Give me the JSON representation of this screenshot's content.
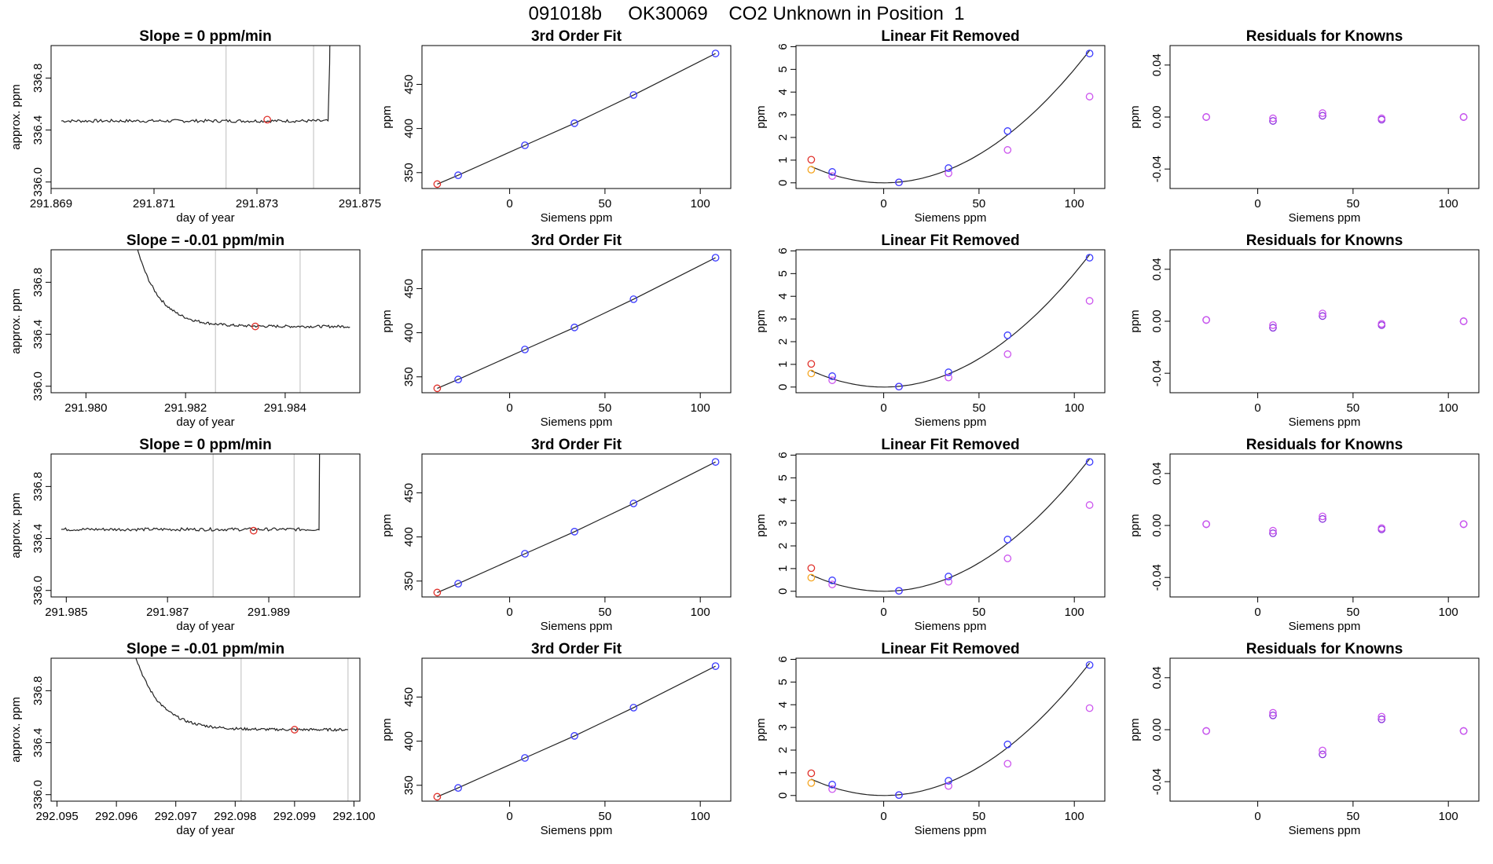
{
  "main_title": "091018b     OK30069    CO2 Unknown in Position  1",
  "colors": {
    "curve": "#222222",
    "blue": "#3a3aff",
    "red": "#e0302a",
    "orange": "#f5a623",
    "magenta": "#cc55ee",
    "purple": "#8833dd",
    "vline": "#bdbdbd"
  },
  "chart_data": [
    {
      "row": 0,
      "panel": "timeseries",
      "type": "line",
      "title": "Slope =  0  ppm/min",
      "xlabel": "day of year",
      "ylabel": "approx. ppm",
      "xlim": [
        291.869,
        291.875
      ],
      "ylim": [
        335.95,
        337.05
      ],
      "xticks": [
        291.869,
        291.871,
        291.873,
        291.875
      ],
      "xtick_labels": [
        "291.869",
        "291.871",
        "291.873",
        "291.875"
      ],
      "yticks": [
        336.0,
        336.4,
        336.8
      ],
      "ytick_labels": [
        "336.0",
        "336.4",
        "336.8"
      ],
      "x_start": 291.8692,
      "x_end": 291.8745,
      "level": 336.47,
      "start_value": 336.47,
      "end_value": 337.1,
      "ramp_start": 291.8744,
      "noise": 0.012,
      "settle": 0.0003,
      "vlines": [
        291.8724,
        291.8741
      ],
      "marker": {
        "x": 291.8732,
        "y": 336.48
      }
    },
    {
      "row": 0,
      "panel": "fit",
      "type": "scatter",
      "title": "3rd Order Fit",
      "xlabel": "Siemens ppm",
      "ylabel": "ppm",
      "xlim": [
        -46,
        116
      ],
      "ylim": [
        332,
        494
      ],
      "xticks": [
        0,
        50,
        100
      ],
      "xtick_labels": [
        "0",
        "50",
        "100"
      ],
      "yticks": [
        350,
        400,
        450
      ],
      "ytick_labels": [
        "350",
        "400",
        "450"
      ],
      "knowns": [
        [
          -27,
          347
        ],
        [
          8,
          381
        ],
        [
          34,
          406
        ],
        [
          65,
          438
        ],
        [
          108,
          485
        ]
      ],
      "unknown": [
        -38,
        337
      ]
    },
    {
      "row": 0,
      "panel": "linear_removed",
      "type": "scatter",
      "title": "Linear Fit Removed",
      "xlabel": "Siemens ppm",
      "ylabel": "ppm",
      "xlim": [
        -46,
        116
      ],
      "ylim": [
        -0.25,
        6.05
      ],
      "xticks": [
        0,
        50,
        100
      ],
      "xtick_labels": [
        "0",
        "50",
        "100"
      ],
      "yticks": [
        0,
        1,
        2,
        3,
        4,
        5,
        6
      ],
      "ytick_labels": [
        "0",
        "1",
        "2",
        "3",
        "4",
        "5",
        "6"
      ],
      "curve_quadratic": [
        0.0005,
        0,
        0
      ],
      "knowns": [
        [
          -27,
          0.48
        ],
        [
          8,
          0.02
        ],
        [
          34,
          0.65
        ],
        [
          65,
          2.28
        ],
        [
          108,
          5.7
        ]
      ],
      "knowns_alt": [
        [
          -27,
          0.3
        ],
        [
          8,
          0.02
        ],
        [
          34,
          0.42
        ],
        [
          65,
          1.45
        ],
        [
          108,
          3.8
        ]
      ],
      "unknown": [
        -38,
        1.02
      ],
      "unknown_alt": [
        -38,
        0.58
      ]
    },
    {
      "row": 0,
      "panel": "residuals",
      "type": "scatter",
      "title": "Residuals for Knowns",
      "xlabel": "Siemens ppm",
      "ylabel": "ppm",
      "xlim": [
        -46,
        116
      ],
      "ylim": [
        -0.055,
        0.055
      ],
      "xticks": [
        0,
        50,
        100
      ],
      "xtick_labels": [
        "0",
        "50",
        "100"
      ],
      "yticks": [
        -0.04,
        0.0,
        0.04
      ],
      "ytick_labels": [
        "-0.04",
        "0.00",
        "0.04"
      ],
      "points_a": [
        [
          -27,
          0.0
        ],
        [
          8,
          -0.001
        ],
        [
          34,
          0.003
        ],
        [
          65,
          -0.001
        ],
        [
          108,
          0.0
        ]
      ],
      "points_b": [
        [
          -27,
          0.0
        ],
        [
          8,
          -0.003
        ],
        [
          34,
          0.001
        ],
        [
          65,
          -0.002
        ],
        [
          108,
          0.0
        ]
      ]
    },
    {
      "row": 1,
      "panel": "timeseries",
      "type": "line",
      "title": "Slope =  -0.01  ppm/min",
      "xlabel": "day of year",
      "ylabel": "approx. ppm",
      "xlim": [
        291.9793,
        291.9855
      ],
      "ylim": [
        335.95,
        337.05
      ],
      "xticks": [
        291.98,
        291.982,
        291.984
      ],
      "xtick_labels": [
        "291.980",
        "291.982",
        "291.984"
      ],
      "yticks": [
        336.0,
        336.4,
        336.8
      ],
      "ytick_labels": [
        "336.0",
        "336.4",
        "336.8"
      ],
      "x_start": 291.981,
      "x_end": 291.9853,
      "level": 336.46,
      "start_value": 337.1,
      "end_value": 336.46,
      "ramp_start": 999,
      "noise": 0.01,
      "settle": 0.00045,
      "vlines": [
        291.9826,
        291.9843
      ],
      "marker": {
        "x": 291.9834,
        "y": 336.46
      }
    },
    {
      "row": 1,
      "panel": "fit",
      "type": "scatter",
      "title": "3rd Order Fit",
      "xlabel": "Siemens ppm",
      "ylabel": "ppm",
      "xlim": [
        -46,
        116
      ],
      "ylim": [
        332,
        494
      ],
      "xticks": [
        0,
        50,
        100
      ],
      "xtick_labels": [
        "0",
        "50",
        "100"
      ],
      "yticks": [
        350,
        400,
        450
      ],
      "ytick_labels": [
        "350",
        "400",
        "450"
      ],
      "knowns": [
        [
          -27,
          347
        ],
        [
          8,
          381
        ],
        [
          34,
          406
        ],
        [
          65,
          438
        ],
        [
          108,
          485
        ]
      ],
      "unknown": [
        -38,
        337
      ]
    },
    {
      "row": 1,
      "panel": "linear_removed",
      "type": "scatter",
      "title": "Linear Fit Removed",
      "xlabel": "Siemens ppm",
      "ylabel": "ppm",
      "xlim": [
        -46,
        116
      ],
      "ylim": [
        -0.25,
        6.05
      ],
      "xticks": [
        0,
        50,
        100
      ],
      "xtick_labels": [
        "0",
        "50",
        "100"
      ],
      "yticks": [
        0,
        1,
        2,
        3,
        4,
        5,
        6
      ],
      "ytick_labels": [
        "0",
        "1",
        "2",
        "3",
        "4",
        "5",
        "6"
      ],
      "curve_quadratic": [
        0.0005,
        0,
        0
      ],
      "knowns": [
        [
          -27,
          0.48
        ],
        [
          8,
          0.02
        ],
        [
          34,
          0.65
        ],
        [
          65,
          2.28
        ],
        [
          108,
          5.7
        ]
      ],
      "knowns_alt": [
        [
          -27,
          0.3
        ],
        [
          8,
          0.02
        ],
        [
          34,
          0.42
        ],
        [
          65,
          1.45
        ],
        [
          108,
          3.8
        ]
      ],
      "unknown": [
        -38,
        1.02
      ],
      "unknown_alt": [
        -38,
        0.6
      ]
    },
    {
      "row": 1,
      "panel": "residuals",
      "type": "scatter",
      "title": "Residuals for Knowns",
      "xlabel": "Siemens ppm",
      "ylabel": "ppm",
      "xlim": [
        -46,
        116
      ],
      "ylim": [
        -0.055,
        0.055
      ],
      "xticks": [
        0,
        50,
        100
      ],
      "xtick_labels": [
        "0",
        "50",
        "100"
      ],
      "yticks": [
        -0.04,
        0.0,
        0.04
      ],
      "ytick_labels": [
        "-0.04",
        "0.00",
        "0.04"
      ],
      "points_a": [
        [
          -27,
          0.001
        ],
        [
          8,
          -0.003
        ],
        [
          34,
          0.006
        ],
        [
          65,
          -0.002
        ],
        [
          108,
          0.0
        ]
      ],
      "points_b": [
        [
          -27,
          0.001
        ],
        [
          8,
          -0.005
        ],
        [
          34,
          0.004
        ],
        [
          65,
          -0.003
        ],
        [
          108,
          0.0
        ]
      ]
    },
    {
      "row": 2,
      "panel": "timeseries",
      "type": "line",
      "title": "Slope =  0  ppm/min",
      "xlabel": "day of year",
      "ylabel": "approx. ppm",
      "xlim": [
        291.9847,
        291.9908
      ],
      "ylim": [
        335.95,
        337.05
      ],
      "xticks": [
        291.985,
        291.987,
        291.989
      ],
      "xtick_labels": [
        "291.985",
        "291.987",
        "291.989"
      ],
      "yticks": [
        336.0,
        336.4,
        336.8
      ],
      "ytick_labels": [
        "336.0",
        "336.4",
        "336.8"
      ],
      "x_start": 291.9849,
      "x_end": 291.99005,
      "level": 336.47,
      "start_value": 336.47,
      "end_value": 337.1,
      "ramp_start": 291.99,
      "noise": 0.012,
      "settle": 0.0003,
      "vlines": [
        291.9879,
        291.9895
      ],
      "marker": {
        "x": 291.9887,
        "y": 336.46
      }
    },
    {
      "row": 2,
      "panel": "fit",
      "type": "scatter",
      "title": "3rd Order Fit",
      "xlabel": "Siemens ppm",
      "ylabel": "ppm",
      "xlim": [
        -46,
        116
      ],
      "ylim": [
        332,
        494
      ],
      "xticks": [
        0,
        50,
        100
      ],
      "xtick_labels": [
        "0",
        "50",
        "100"
      ],
      "yticks": [
        350,
        400,
        450
      ],
      "ytick_labels": [
        "350",
        "400",
        "450"
      ],
      "knowns": [
        [
          -27,
          347
        ],
        [
          8,
          381
        ],
        [
          34,
          406
        ],
        [
          65,
          438
        ],
        [
          108,
          485
        ]
      ],
      "unknown": [
        -38,
        337
      ]
    },
    {
      "row": 2,
      "panel": "linear_removed",
      "type": "scatter",
      "title": "Linear Fit Removed",
      "xlabel": "Siemens ppm",
      "ylabel": "ppm",
      "xlim": [
        -46,
        116
      ],
      "ylim": [
        -0.25,
        6.05
      ],
      "xticks": [
        0,
        50,
        100
      ],
      "xtick_labels": [
        "0",
        "50",
        "100"
      ],
      "yticks": [
        0,
        1,
        2,
        3,
        4,
        5,
        6
      ],
      "ytick_labels": [
        "0",
        "1",
        "2",
        "3",
        "4",
        "5",
        "6"
      ],
      "curve_quadratic": [
        0.0005,
        0,
        0
      ],
      "knowns": [
        [
          -27,
          0.48
        ],
        [
          8,
          0.02
        ],
        [
          34,
          0.65
        ],
        [
          65,
          2.28
        ],
        [
          108,
          5.7
        ]
      ],
      "knowns_alt": [
        [
          -27,
          0.3
        ],
        [
          8,
          0.02
        ],
        [
          34,
          0.42
        ],
        [
          65,
          1.45
        ],
        [
          108,
          3.8
        ]
      ],
      "unknown": [
        -38,
        1.02
      ],
      "unknown_alt": [
        -38,
        0.6
      ]
    },
    {
      "row": 2,
      "panel": "residuals",
      "type": "scatter",
      "title": "Residuals for Knowns",
      "xlabel": "Siemens ppm",
      "ylabel": "ppm",
      "xlim": [
        -46,
        116
      ],
      "ylim": [
        -0.055,
        0.055
      ],
      "xticks": [
        0,
        50,
        100
      ],
      "xtick_labels": [
        "0",
        "50",
        "100"
      ],
      "yticks": [
        -0.04,
        0.0,
        0.04
      ],
      "ytick_labels": [
        "-0.04",
        "0.00",
        "0.04"
      ],
      "points_a": [
        [
          -27,
          0.001
        ],
        [
          8,
          -0.004
        ],
        [
          34,
          0.007
        ],
        [
          65,
          -0.002
        ],
        [
          108,
          0.001
        ]
      ],
      "points_b": [
        [
          -27,
          0.001
        ],
        [
          8,
          -0.006
        ],
        [
          34,
          0.005
        ],
        [
          65,
          -0.003
        ],
        [
          108,
          0.001
        ]
      ]
    },
    {
      "row": 3,
      "panel": "timeseries",
      "type": "line",
      "title": "Slope =  -0.01  ppm/min",
      "xlabel": "day of year",
      "ylabel": "approx. ppm",
      "xlim": [
        292.0949,
        292.1001
      ],
      "ylim": [
        335.95,
        337.05
      ],
      "xticks": [
        292.095,
        292.096,
        292.097,
        292.098,
        292.099,
        292.1
      ],
      "xtick_labels": [
        "292.095",
        "292.096",
        "292.097",
        "292.098",
        "292.099",
        "292.100"
      ],
      "yticks": [
        336.0,
        336.4,
        336.8
      ],
      "ytick_labels": [
        "336.0",
        "336.4",
        "336.8"
      ],
      "x_start": 292.0963,
      "x_end": 292.0999,
      "level": 336.5,
      "start_value": 337.1,
      "end_value": 336.49,
      "ramp_start": 999,
      "noise": 0.01,
      "settle": 0.0004,
      "vlines": [
        292.0981,
        292.0999
      ],
      "marker": {
        "x": 292.099,
        "y": 336.5
      }
    },
    {
      "row": 3,
      "panel": "fit",
      "type": "scatter",
      "title": "3rd Order Fit",
      "xlabel": "Siemens ppm",
      "ylabel": "ppm",
      "xlim": [
        -46,
        116
      ],
      "ylim": [
        332,
        494
      ],
      "xticks": [
        0,
        50,
        100
      ],
      "xtick_labels": [
        "0",
        "50",
        "100"
      ],
      "yticks": [
        350,
        400,
        450
      ],
      "ytick_labels": [
        "350",
        "400",
        "450"
      ],
      "knowns": [
        [
          -27,
          347
        ],
        [
          8,
          381
        ],
        [
          34,
          406
        ],
        [
          65,
          438
        ],
        [
          108,
          485
        ]
      ],
      "unknown": [
        -38,
        337
      ]
    },
    {
      "row": 3,
      "panel": "linear_removed",
      "type": "scatter",
      "title": "Linear Fit Removed",
      "xlabel": "Siemens ppm",
      "ylabel": "ppm",
      "xlim": [
        -46,
        116
      ],
      "ylim": [
        -0.25,
        6.05
      ],
      "xticks": [
        0,
        50,
        100
      ],
      "xtick_labels": [
        "0",
        "50",
        "100"
      ],
      "yticks": [
        0,
        1,
        2,
        3,
        4,
        5,
        6
      ],
      "ytick_labels": [
        "0",
        "1",
        "2",
        "3",
        "4",
        "5",
        "6"
      ],
      "curve_quadratic": [
        0.0005,
        0,
        0
      ],
      "knowns": [
        [
          -27,
          0.48
        ],
        [
          8,
          0.02
        ],
        [
          34,
          0.65
        ],
        [
          65,
          2.25
        ],
        [
          108,
          5.75
        ]
      ],
      "knowns_alt": [
        [
          -27,
          0.28
        ],
        [
          8,
          0.02
        ],
        [
          34,
          0.42
        ],
        [
          65,
          1.4
        ],
        [
          108,
          3.85
        ]
      ],
      "unknown": [
        -38,
        0.98
      ],
      "unknown_alt": [
        -38,
        0.55
      ]
    },
    {
      "row": 3,
      "panel": "residuals",
      "type": "scatter",
      "title": "Residuals for Knowns",
      "xlabel": "Siemens ppm",
      "ylabel": "ppm",
      "xlim": [
        -46,
        116
      ],
      "ylim": [
        -0.055,
        0.055
      ],
      "xticks": [
        0,
        50,
        100
      ],
      "xtick_labels": [
        "0",
        "50",
        "100"
      ],
      "yticks": [
        -0.04,
        0.0,
        0.04
      ],
      "ytick_labels": [
        "-0.04",
        "0.00",
        "0.04"
      ],
      "points_a": [
        [
          -27,
          -0.001
        ],
        [
          8,
          0.013
        ],
        [
          34,
          -0.016
        ],
        [
          65,
          0.01
        ],
        [
          108,
          -0.001
        ]
      ],
      "points_b": [
        [
          -27,
          -0.001
        ],
        [
          8,
          0.011
        ],
        [
          34,
          -0.019
        ],
        [
          65,
          0.008
        ],
        [
          108,
          -0.001
        ]
      ]
    }
  ]
}
